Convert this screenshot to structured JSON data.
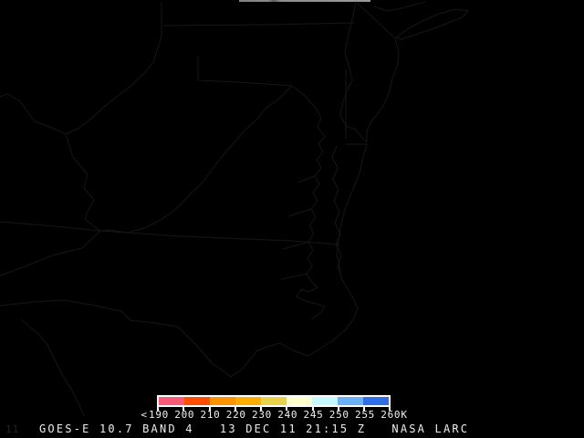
{
  "caption": {
    "full": "GOES-E 10.7 BAND 4   13 DEC 11 21:15 Z   NASA LARC",
    "satellite": "GOES-E",
    "channel": "10.7",
    "band": "BAND 4",
    "date": "13 DEC 11",
    "time": "21:15 Z",
    "credit": "NASA LARC"
  },
  "ghost_text": "11",
  "colorbar": {
    "prefix": "<",
    "units_suffix": "K",
    "tick_labels": [
      "190",
      "200",
      "210",
      "220",
      "230",
      "240",
      "245",
      "250",
      "255",
      "260"
    ],
    "segment_colors": [
      "#f85b76",
      "#fd4e00",
      "#fd9300",
      "#fdae00",
      "#e8d24a",
      "#ffffcc",
      "#c5f9ff",
      "#6cb1f5",
      "#2e6fe8"
    ]
  },
  "map": {
    "outline_color": "#161616",
    "paths": [
      "M177,2 L177,40 L168,68 L160,78 L150,88 L140,97 L125,108 L113,118 L100,130 L87,140 L72,147 L55,139 L38,133 L22,111 L8,103 L0,106",
      "M72,147 L80,172 L96,191 L92,206 L103,219 L96,232 L93,240 L103,248 L110,253",
      "M0,302 L30,291 L57,280 L77,275 L90,272 L110,253",
      "M0,243 L60,248 L110,253 L200,259 L320,264 L372,268",
      "M179,28 L300,27 L388,25",
      "M217,62 L217,88 M217,88 L260,90 L320,94 L333,104 L345,117 L352,129 L348,139 L356,150",
      "M320,94 L305,109 L292,118 L281,131 L268,143 L257,156 L245,169 L236,181 L221,201 L209,212 L199,223 L188,233 L174,242 L158,250 L139,255 L120,252 L110,253",
      "M390,2 L386,22 L381,42 L378,58 L383,74 L386,88 L380,100 L376,112 L373,126 L379,138 L390,142 L396,150 L402,156",
      "M433,42 L437,58 L436,70 L430,86 L427,100 L421,114 L413,126 L407,133 L402,143 L402,156",
      "M390,2 L433,42",
      "M434,41 L448,31 L463,23 L481,15 L499,10 L513,12 L506,19 L489,26 L470,33 L452,39 L440,43 L434,41",
      "M410,7 L424,12 L440,9 L455,5 L466,2",
      "M379,76 L379,152 M379,158 L402,158",
      "M402,158 L398,172 L395,186 L390,200 L384,214 L378,229 L374,246 L371,262 L369,278 L372,292 L374,305",
      "M356,150 L349,158 L354,166 L347,175 L352,184 L345,193 L350,202 L343,211 L348,220 L341,229 L346,238 L339,247 L344,256 L338,265 L343,274 L337,283 L342,292 L336,300 L341,308 L348,315",
      "M345,193 L326,200 M341,229 L316,237 M338,265 L310,273 M336,300 L308,306",
      "M369,160 L364,172 L370,184 L365,196 L371,208 L366,220 L372,232 L367,244 L373,256 L368,268 L374,280 L370,292 L374,302",
      "M348,315 L338,320 L330,317 L325,325 L335,330 L347,333 L356,336 L350,344 L341,350",
      "M374,305 L380,315 L386,325 L392,338 L387,350 L378,362 L365,373 L351,382 L338,390",
      "M338,390 L321,384 L307,376 L290,381 L281,385 L266,404 L253,413 L240,403 L232,398",
      "M0,335 L35,331 L70,329 L100,334 L133,341 L143,351 L170,354 L195,358 L215,378 L233,399",
      "M23,350 L43,367 L52,378 L58,390 L68,410 L77,425 L85,440 L92,456"
    ]
  }
}
